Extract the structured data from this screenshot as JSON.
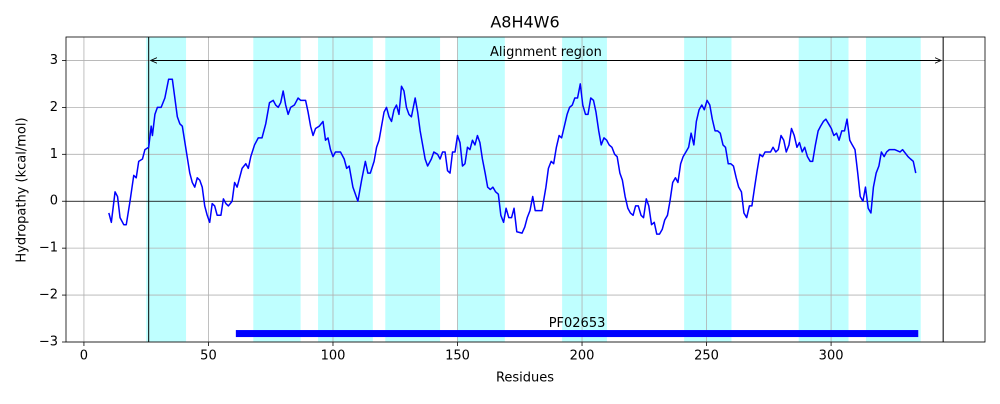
{
  "chart_data": {
    "type": "line",
    "title": "A8H4W6",
    "xlabel": "Residues",
    "ylabel": "Hydropathy (kcal/mol)",
    "xlim": [
      -7.2,
      361.8
    ],
    "ylim": [
      -3,
      3.5
    ],
    "xticks": [
      0,
      50,
      100,
      150,
      200,
      250,
      300
    ],
    "yticks": [
      {
        "value": -3,
        "label": "−3"
      },
      {
        "value": -2,
        "label": "−2"
      },
      {
        "value": -1,
        "label": "−1"
      },
      0,
      1,
      2,
      3
    ],
    "grid": true,
    "regions": [
      {
        "start": 25,
        "end": 41,
        "color": "#bfffff"
      },
      {
        "start": 68,
        "end": 87,
        "color": "#bfffff"
      },
      {
        "start": 94,
        "end": 116,
        "color": "#bfffff"
      },
      {
        "start": 121,
        "end": 143,
        "color": "#bfffff"
      },
      {
        "start": 150,
        "end": 169,
        "color": "#bfffff"
      },
      {
        "start": 192,
        "end": 210,
        "color": "#bfffff"
      },
      {
        "start": 241,
        "end": 260,
        "color": "#bfffff"
      },
      {
        "start": 287,
        "end": 307,
        "color": "#bfffff"
      },
      {
        "start": 314,
        "end": 336,
        "color": "#bfffff"
      }
    ],
    "alignment": {
      "label": "Alignment region",
      "start": 26,
      "end": 345,
      "y": 3
    },
    "domain": {
      "label": "PF02653",
      "start": 61,
      "end": 335,
      "y": -2.82,
      "color": "#0000ff"
    },
    "x": [
      10,
      11,
      12.5,
      13.5,
      14.5,
      16,
      17,
      18.5,
      20,
      21,
      22,
      23.5,
      24.5,
      26,
      27,
      27.5,
      28.5,
      29.5,
      31,
      32.5,
      34,
      35.5,
      36.5,
      37.5,
      38.5,
      39.5,
      41,
      42.5,
      43.5,
      44.5,
      45.5,
      46.5,
      47.5,
      48.5,
      49.5,
      50.5,
      51.5,
      52.5,
      53.5,
      55,
      56,
      57,
      58,
      59.5,
      60.5,
      61.5,
      62.5,
      63.5,
      65,
      66,
      67,
      68.5,
      70,
      71.5,
      73,
      74.5,
      76,
      77,
      78,
      79,
      80,
      81,
      82,
      83,
      84.5,
      86,
      87,
      89,
      90,
      91,
      92,
      93,
      94.5,
      96,
      97,
      98,
      99,
      100,
      101,
      103,
      104.5,
      105.5,
      106.5,
      108,
      110,
      111.5,
      113,
      114,
      115,
      116.5,
      117.5,
      118.5,
      119.5,
      120.5,
      121.5,
      122.5,
      123.5,
      124.5,
      125.5,
      126.5,
      127.5,
      128.5,
      129.5,
      130.5,
      131.5,
      133,
      134,
      135,
      136,
      137,
      138,
      139.5,
      140.5,
      142,
      143,
      144,
      145,
      146,
      147,
      148,
      149,
      150,
      151,
      152,
      153,
      154,
      155,
      156,
      157,
      158,
      159,
      160,
      161.1,
      162.1,
      163.2,
      164.2,
      165.3,
      166.4,
      167.4,
      168.5,
      169.5,
      170.6,
      171.7,
      172.7,
      173.8,
      175.9,
      177.0,
      178.0,
      179.1,
      180.2,
      181.2,
      182.3,
      183.9,
      185.5,
      186.5,
      187.6,
      188.6,
      189.7,
      190.8,
      191.8,
      192.9,
      194.0,
      195.0,
      196.1,
      197.1,
      198.2,
      199.3,
      200.3,
      201.4,
      202.4,
      203.5,
      204.6,
      205.6,
      206.7,
      207.7,
      208.8,
      209.9,
      210.9,
      212.0,
      213.1,
      214.1,
      215.2,
      216.2,
      217.3,
      218.4,
      219.4,
      220.5,
      221.5,
      222.6,
      223.7,
      224.7,
      225.8,
      226.8,
      227.9,
      229.0,
      230.0,
      231.1,
      232.2,
      233.2,
      234.3,
      235.3,
      236.4,
      237.5,
      238.5,
      239.6,
      240.6,
      241.7,
      242.8,
      243.8,
      244.9,
      245.9,
      247.0,
      248.1,
      249.1,
      250.2,
      251.3,
      252.3,
      253.4,
      254.4,
      255.5,
      256.6,
      257.6,
      258.7,
      259.7,
      260.8,
      261.9,
      262.9,
      264.0,
      265.0,
      266.1,
      267.2,
      268.2,
      269.3,
      270.3,
      271.4,
      272.5,
      273.5,
      274.6,
      275.7,
      276.7,
      277.8,
      278.8,
      279.9,
      281.0,
      282.0,
      283.1,
      284.1,
      285.2,
      286.3,
      287.3,
      288.4,
      289.4,
      290.5,
      291.6,
      292.6,
      293.7,
      294.8,
      295.8,
      296.9,
      297.9,
      299.0,
      300.1,
      301.1,
      302.2,
      303.2,
      304.3,
      305.4,
      306.4,
      307.5,
      308.5,
      309.6,
      310.7,
      311.7,
      312.8,
      313.8,
      314.9,
      316.0,
      317.0,
      318.1,
      319.2,
      320.2,
      321.3,
      322.3,
      323.4,
      325.5,
      327.7,
      328.7,
      330.9,
      331.9,
      333.0,
      334.0
    ],
    "series": [
      {
        "color": "#0000ff",
        "values": [
          -0.25,
          -0.45,
          0.2,
          0.1,
          -0.35,
          -0.5,
          -0.5,
          0,
          0.55,
          0.5,
          0.85,
          0.9,
          1.1,
          1.15,
          1.6,
          1.4,
          1.85,
          2.0,
          2.0,
          2.2,
          2.6,
          2.6,
          2.2,
          1.8,
          1.65,
          1.6,
          1.1,
          0.6,
          0.4,
          0.3,
          0.5,
          0.45,
          0.3,
          -0.1,
          -0.3,
          -0.45,
          -0.05,
          -0.1,
          -0.3,
          -0.3,
          0.05,
          -0.05,
          -0.1,
          0.0,
          0.4,
          0.3,
          0.5,
          0.7,
          0.8,
          0.7,
          0.95,
          1.2,
          1.35,
          1.35,
          1.65,
          2.1,
          2.15,
          2.05,
          2.0,
          2.1,
          2.35,
          2.05,
          1.85,
          2.0,
          2.05,
          2.2,
          2.15,
          2.15,
          1.9,
          1.6,
          1.4,
          1.55,
          1.6,
          1.7,
          1.3,
          1.35,
          1.1,
          0.95,
          1.05,
          1.05,
          0.9,
          0.7,
          0.75,
          0.3,
          0.0,
          0.45,
          0.85,
          0.6,
          0.6,
          0.85,
          1.15,
          1.3,
          1.6,
          1.9,
          2.0,
          1.8,
          1.7,
          1.95,
          2.05,
          1.85,
          2.45,
          2.35,
          2.0,
          1.85,
          1.8,
          2.2,
          1.9,
          1.5,
          1.2,
          0.9,
          0.75,
          0.9,
          1.05,
          1.0,
          0.9,
          1.05,
          1.05,
          0.65,
          0.6,
          1.05,
          1.05,
          1.4,
          1.25,
          0.75,
          0.8,
          1.15,
          1.1,
          1.3,
          1.2,
          1.4,
          1.25,
          0.9,
          0.6,
          0.3,
          0.25,
          0.3,
          0.2,
          0.15,
          -0.3,
          -0.45,
          -0.15,
          -0.35,
          -0.35,
          -0.15,
          -0.65,
          -0.68,
          -0.55,
          -0.35,
          -0.2,
          0.1,
          -0.2,
          -0.2,
          -0.2,
          0.3,
          0.7,
          0.85,
          0.8,
          1.15,
          1.4,
          1.35,
          1.6,
          1.85,
          2.0,
          2.05,
          2.2,
          2.2,
          2.5,
          2.05,
          1.85,
          1.85,
          2.2,
          2.15,
          1.9,
          1.5,
          1.2,
          1.35,
          1.3,
          1.2,
          1.15,
          1.0,
          0.95,
          0.6,
          0.45,
          0.1,
          -0.15,
          -0.25,
          -0.3,
          -0.1,
          -0.1,
          -0.3,
          -0.35,
          0.05,
          -0.1,
          -0.5,
          -0.45,
          -0.7,
          -0.7,
          -0.6,
          -0.4,
          -0.3,
          0.0,
          0.4,
          0.5,
          0.4,
          0.8,
          0.95,
          1.05,
          1.15,
          1.45,
          1.2,
          1.7,
          1.95,
          2.05,
          1.95,
          2.15,
          2.05,
          1.75,
          1.5,
          1.5,
          1.45,
          1.2,
          1.15,
          0.8,
          0.8,
          0.75,
          0.5,
          0.3,
          0.2,
          -0.25,
          -0.35,
          -0.1,
          -0.1,
          0.3,
          0.65,
          1.0,
          0.95,
          1.05,
          1.05,
          1.05,
          1.15,
          1.05,
          1.1,
          1.4,
          1.3,
          1.05,
          1.2,
          1.55,
          1.4,
          1.15,
          1.25,
          1.05,
          1.15,
          0.95,
          0.85,
          0.85,
          1.2,
          1.5,
          1.6,
          1.7,
          1.75,
          1.65,
          1.55,
          1.4,
          1.45,
          1.3,
          1.5,
          1.5,
          1.75,
          1.3,
          1.2,
          1.1,
          0.6,
          0.1,
          0.0,
          0.3,
          -0.15,
          -0.25,
          0.3,
          0.6,
          0.75,
          1.05,
          0.95,
          1.05,
          1.1,
          1.1,
          1.05,
          1.1,
          0.95,
          0.9,
          0.85,
          0.6
        ]
      }
    ]
  }
}
